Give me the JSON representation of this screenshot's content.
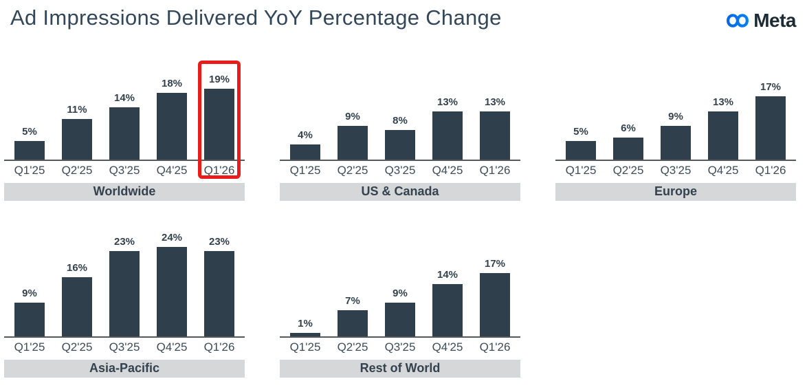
{
  "header": {
    "title": "Ad Impressions Delivered YoY Percentage Change",
    "brand": "Meta"
  },
  "colors": {
    "background": "#FFFFFF",
    "bar": "#2F404C",
    "title_text": "#33475A",
    "value_label": "#33424E",
    "category_label": "#3E4D59",
    "axis_line": "#55595C",
    "banner_bg": "#D5D7D9",
    "banner_text": "#33424E",
    "highlight_box": "#E91C1C",
    "brand_text": "#1C2B33",
    "logo_gradient_start": "#0668E1",
    "logo_gradient_end": "#0080FB"
  },
  "chart_data": [
    {
      "type": "bar",
      "region": "Worldwide",
      "categories": [
        "Q1'25",
        "Q2'25",
        "Q3'25",
        "Q4'25",
        "Q1'26"
      ],
      "values": [
        5,
        11,
        14,
        18,
        19
      ],
      "value_labels": [
        "5%",
        "11%",
        "14%",
        "18%",
        "19%"
      ],
      "unit": "%",
      "highlight_index": 4
    },
    {
      "type": "bar",
      "region": "US & Canada",
      "categories": [
        "Q1'25",
        "Q2'25",
        "Q3'25",
        "Q4'25",
        "Q1'26"
      ],
      "values": [
        4,
        9,
        8,
        13,
        13
      ],
      "value_labels": [
        "4%",
        "9%",
        "8%",
        "13%",
        "13%"
      ],
      "unit": "%"
    },
    {
      "type": "bar",
      "region": "Europe",
      "categories": [
        "Q1'25",
        "Q2'25",
        "Q3'25",
        "Q4'25",
        "Q1'26"
      ],
      "values": [
        5,
        6,
        9,
        13,
        17
      ],
      "value_labels": [
        "5%",
        "6%",
        "9%",
        "13%",
        "17%"
      ],
      "unit": "%"
    },
    {
      "type": "bar",
      "region": "Asia-Pacific",
      "categories": [
        "Q1'25",
        "Q2'25",
        "Q3'25",
        "Q4'25",
        "Q1'26"
      ],
      "values": [
        9,
        16,
        23,
        24,
        23
      ],
      "value_labels": [
        "9%",
        "16%",
        "23%",
        "24%",
        "23%"
      ],
      "unit": "%"
    },
    {
      "type": "bar",
      "region": "Rest of World",
      "categories": [
        "Q1'25",
        "Q2'25",
        "Q3'25",
        "Q4'25",
        "Q1'26"
      ],
      "values": [
        1,
        7,
        9,
        14,
        17
      ],
      "value_labels": [
        "1%",
        "7%",
        "9%",
        "14%",
        "17%"
      ],
      "unit": "%"
    }
  ]
}
